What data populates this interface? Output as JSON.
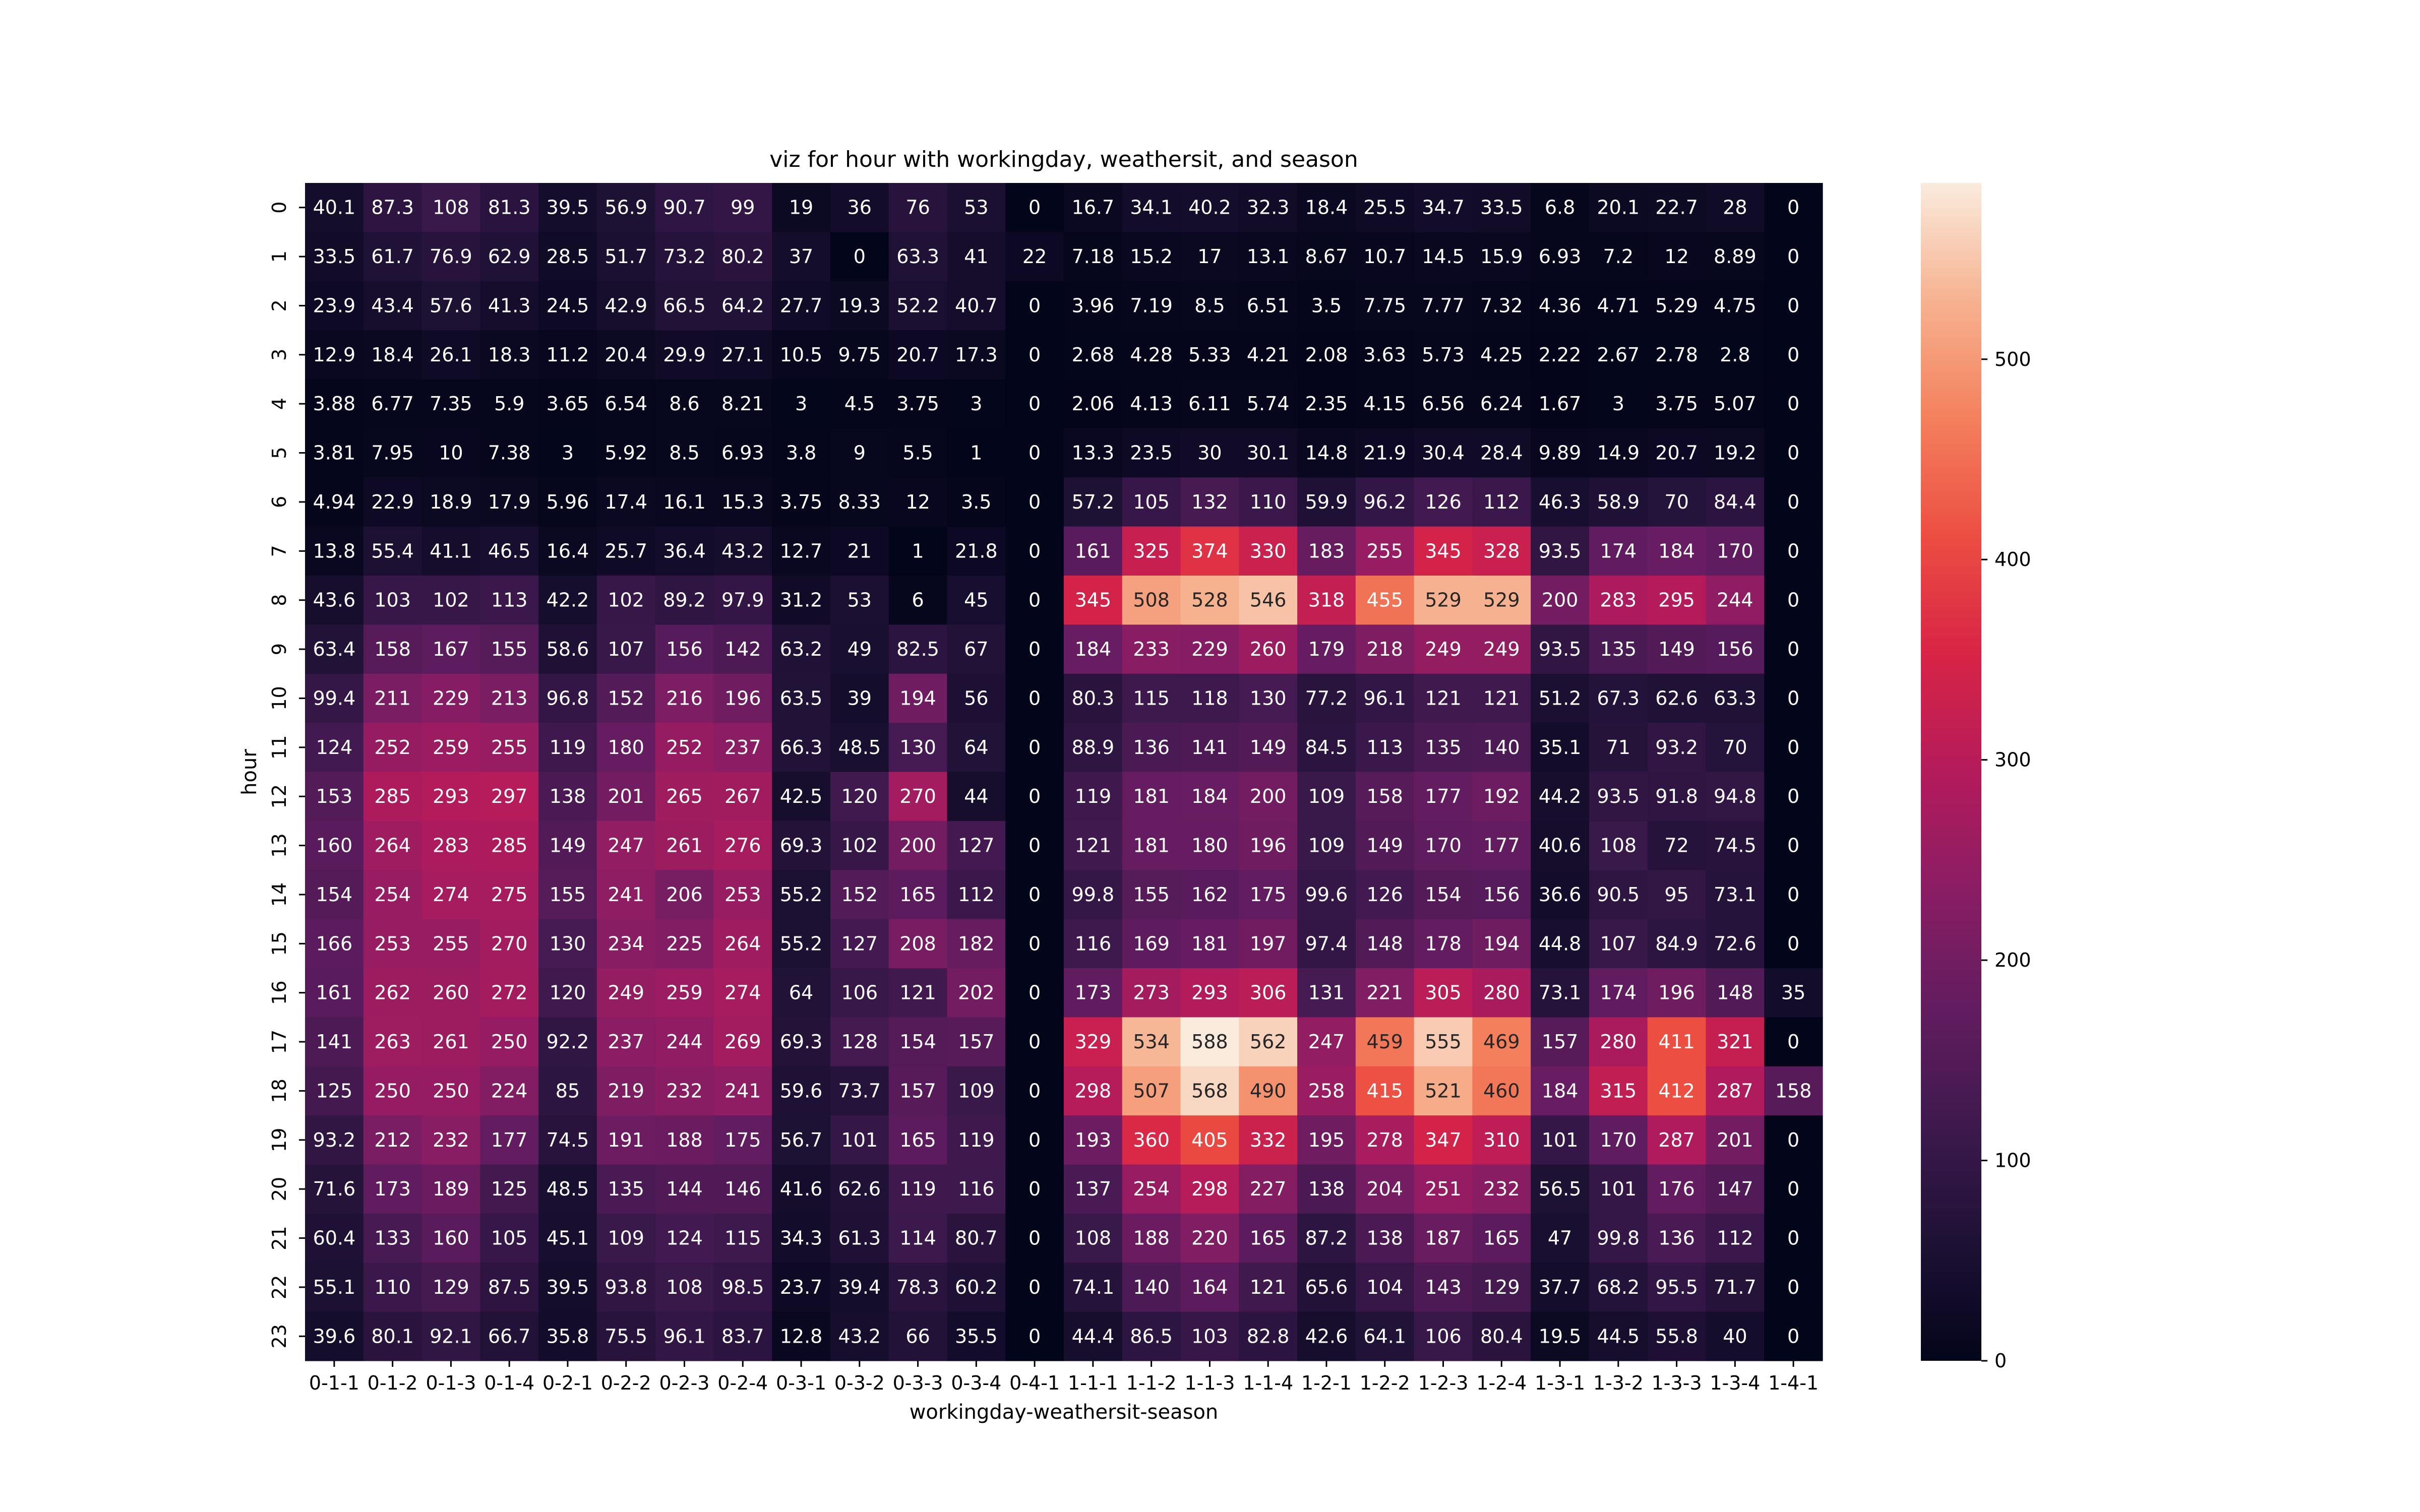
{
  "chart_data": {
    "type": "heatmap",
    "title": "viz for hour with workingday, weathersit, and season",
    "xlabel": "workingday-weathersit-season",
    "ylabel": "hour",
    "x_categories": [
      "0-1-1",
      "0-1-2",
      "0-1-3",
      "0-1-4",
      "0-2-1",
      "0-2-2",
      "0-2-3",
      "0-2-4",
      "0-3-1",
      "0-3-2",
      "0-3-3",
      "0-3-4",
      "0-4-1",
      "1-1-1",
      "1-1-2",
      "1-1-3",
      "1-1-4",
      "1-2-1",
      "1-2-2",
      "1-2-3",
      "1-2-4",
      "1-3-1",
      "1-3-2",
      "1-3-3",
      "1-3-4",
      "1-4-1"
    ],
    "y_categories": [
      "0",
      "1",
      "2",
      "3",
      "4",
      "5",
      "6",
      "7",
      "8",
      "9",
      "10",
      "11",
      "12",
      "13",
      "14",
      "15",
      "16",
      "17",
      "18",
      "19",
      "20",
      "21",
      "22",
      "23"
    ],
    "values": [
      [
        "40.1",
        "87.3",
        "108",
        "81.3",
        "39.5",
        "56.9",
        "90.7",
        "99",
        "19",
        "36",
        "76",
        "53",
        "0",
        "16.7",
        "34.1",
        "40.2",
        "32.3",
        "18.4",
        "25.5",
        "34.7",
        "33.5",
        "6.8",
        "20.1",
        "22.7",
        "28",
        "0"
      ],
      [
        "33.5",
        "61.7",
        "76.9",
        "62.9",
        "28.5",
        "51.7",
        "73.2",
        "80.2",
        "37",
        "0",
        "63.3",
        "41",
        "22",
        "7.18",
        "15.2",
        "17",
        "13.1",
        "8.67",
        "10.7",
        "14.5",
        "15.9",
        "6.93",
        "7.2",
        "12",
        "8.89",
        "0"
      ],
      [
        "23.9",
        "43.4",
        "57.6",
        "41.3",
        "24.5",
        "42.9",
        "66.5",
        "64.2",
        "27.7",
        "19.3",
        "52.2",
        "40.7",
        "0",
        "3.96",
        "7.19",
        "8.5",
        "6.51",
        "3.5",
        "7.75",
        "7.77",
        "7.32",
        "4.36",
        "4.71",
        "5.29",
        "4.75",
        "0"
      ],
      [
        "12.9",
        "18.4",
        "26.1",
        "18.3",
        "11.2",
        "20.4",
        "29.9",
        "27.1",
        "10.5",
        "9.75",
        "20.7",
        "17.3",
        "0",
        "2.68",
        "4.28",
        "5.33",
        "4.21",
        "2.08",
        "3.63",
        "5.73",
        "4.25",
        "2.22",
        "2.67",
        "2.78",
        "2.8",
        "0"
      ],
      [
        "3.88",
        "6.77",
        "7.35",
        "5.9",
        "3.65",
        "6.54",
        "8.6",
        "8.21",
        "3",
        "4.5",
        "3.75",
        "3",
        "0",
        "2.06",
        "4.13",
        "6.11",
        "5.74",
        "2.35",
        "4.15",
        "6.56",
        "6.24",
        "1.67",
        "3",
        "3.75",
        "5.07",
        "0"
      ],
      [
        "3.81",
        "7.95",
        "10",
        "7.38",
        "3",
        "5.92",
        "8.5",
        "6.93",
        "3.8",
        "9",
        "5.5",
        "1",
        "0",
        "13.3",
        "23.5",
        "30",
        "30.1",
        "14.8",
        "21.9",
        "30.4",
        "28.4",
        "9.89",
        "14.9",
        "20.7",
        "19.2",
        "0"
      ],
      [
        "4.94",
        "22.9",
        "18.9",
        "17.9",
        "5.96",
        "17.4",
        "16.1",
        "15.3",
        "3.75",
        "8.33",
        "12",
        "3.5",
        "0",
        "57.2",
        "105",
        "132",
        "110",
        "59.9",
        "96.2",
        "126",
        "112",
        "46.3",
        "58.9",
        "70",
        "84.4",
        "0"
      ],
      [
        "13.8",
        "55.4",
        "41.1",
        "46.5",
        "16.4",
        "25.7",
        "36.4",
        "43.2",
        "12.7",
        "21",
        "1",
        "21.8",
        "0",
        "161",
        "325",
        "374",
        "330",
        "183",
        "255",
        "345",
        "328",
        "93.5",
        "174",
        "184",
        "170",
        "0"
      ],
      [
        "43.6",
        "103",
        "102",
        "113",
        "42.2",
        "102",
        "89.2",
        "97.9",
        "31.2",
        "53",
        "6",
        "45",
        "0",
        "345",
        "508",
        "528",
        "546",
        "318",
        "455",
        "529",
        "529",
        "200",
        "283",
        "295",
        "244",
        "0"
      ],
      [
        "63.4",
        "158",
        "167",
        "155",
        "58.6",
        "107",
        "156",
        "142",
        "63.2",
        "49",
        "82.5",
        "67",
        "0",
        "184",
        "233",
        "229",
        "260",
        "179",
        "218",
        "249",
        "249",
        "93.5",
        "135",
        "149",
        "156",
        "0"
      ],
      [
        "99.4",
        "211",
        "229",
        "213",
        "96.8",
        "152",
        "216",
        "196",
        "63.5",
        "39",
        "194",
        "56",
        "0",
        "80.3",
        "115",
        "118",
        "130",
        "77.2",
        "96.1",
        "121",
        "121",
        "51.2",
        "67.3",
        "62.6",
        "63.3",
        "0"
      ],
      [
        "124",
        "252",
        "259",
        "255",
        "119",
        "180",
        "252",
        "237",
        "66.3",
        "48.5",
        "130",
        "64",
        "0",
        "88.9",
        "136",
        "141",
        "149",
        "84.5",
        "113",
        "135",
        "140",
        "35.1",
        "71",
        "93.2",
        "70",
        "0"
      ],
      [
        "153",
        "285",
        "293",
        "297",
        "138",
        "201",
        "265",
        "267",
        "42.5",
        "120",
        "270",
        "44",
        "0",
        "119",
        "181",
        "184",
        "200",
        "109",
        "158",
        "177",
        "192",
        "44.2",
        "93.5",
        "91.8",
        "94.8",
        "0"
      ],
      [
        "160",
        "264",
        "283",
        "285",
        "149",
        "247",
        "261",
        "276",
        "69.3",
        "102",
        "200",
        "127",
        "0",
        "121",
        "181",
        "180",
        "196",
        "109",
        "149",
        "170",
        "177",
        "40.6",
        "108",
        "72",
        "74.5",
        "0"
      ],
      [
        "154",
        "254",
        "274",
        "275",
        "155",
        "241",
        "206",
        "253",
        "55.2",
        "152",
        "165",
        "112",
        "0",
        "99.8",
        "155",
        "162",
        "175",
        "99.6",
        "126",
        "154",
        "156",
        "36.6",
        "90.5",
        "95",
        "73.1",
        "0"
      ],
      [
        "166",
        "253",
        "255",
        "270",
        "130",
        "234",
        "225",
        "264",
        "55.2",
        "127",
        "208",
        "182",
        "0",
        "116",
        "169",
        "181",
        "197",
        "97.4",
        "148",
        "178",
        "194",
        "44.8",
        "107",
        "84.9",
        "72.6",
        "0"
      ],
      [
        "161",
        "262",
        "260",
        "272",
        "120",
        "249",
        "259",
        "274",
        "64",
        "106",
        "121",
        "202",
        "0",
        "173",
        "273",
        "293",
        "306",
        "131",
        "221",
        "305",
        "280",
        "73.1",
        "174",
        "196",
        "148",
        "35"
      ],
      [
        "141",
        "263",
        "261",
        "250",
        "92.2",
        "237",
        "244",
        "269",
        "69.3",
        "128",
        "154",
        "157",
        "0",
        "329",
        "534",
        "588",
        "562",
        "247",
        "459",
        "555",
        "469",
        "157",
        "280",
        "411",
        "321",
        "0"
      ],
      [
        "125",
        "250",
        "250",
        "224",
        "85",
        "219",
        "232",
        "241",
        "59.6",
        "73.7",
        "157",
        "109",
        "0",
        "298",
        "507",
        "568",
        "490",
        "258",
        "415",
        "521",
        "460",
        "184",
        "315",
        "412",
        "287",
        "158"
      ],
      [
        "93.2",
        "212",
        "232",
        "177",
        "74.5",
        "191",
        "188",
        "175",
        "56.7",
        "101",
        "165",
        "119",
        "0",
        "193",
        "360",
        "405",
        "332",
        "195",
        "278",
        "347",
        "310",
        "101",
        "170",
        "287",
        "201",
        "0"
      ],
      [
        "71.6",
        "173",
        "189",
        "125",
        "48.5",
        "135",
        "144",
        "146",
        "41.6",
        "62.6",
        "119",
        "116",
        "0",
        "137",
        "254",
        "298",
        "227",
        "138",
        "204",
        "251",
        "232",
        "56.5",
        "101",
        "176",
        "147",
        "0"
      ],
      [
        "60.4",
        "133",
        "160",
        "105",
        "45.1",
        "109",
        "124",
        "115",
        "34.3",
        "61.3",
        "114",
        "80.7",
        "0",
        "108",
        "188",
        "220",
        "165",
        "87.2",
        "138",
        "187",
        "165",
        "47",
        "99.8",
        "136",
        "112",
        "0"
      ],
      [
        "55.1",
        "110",
        "129",
        "87.5",
        "39.5",
        "93.8",
        "108",
        "98.5",
        "23.7",
        "39.4",
        "78.3",
        "60.2",
        "0",
        "74.1",
        "140",
        "164",
        "121",
        "65.6",
        "104",
        "143",
        "129",
        "37.7",
        "68.2",
        "95.5",
        "71.7",
        "0"
      ],
      [
        "39.6",
        "80.1",
        "92.1",
        "66.7",
        "35.8",
        "75.5",
        "96.1",
        "83.7",
        "12.8",
        "43.2",
        "66",
        "35.5",
        "0",
        "44.4",
        "86.5",
        "103",
        "82.8",
        "42.6",
        "64.1",
        "106",
        "80.4",
        "19.5",
        "44.5",
        "55.8",
        "40",
        "0"
      ]
    ],
    "colorbar": {
      "min": 0,
      "max": 588,
      "ticks": [
        0,
        100,
        200,
        300,
        400,
        500
      ],
      "colormap": "rocket"
    }
  }
}
